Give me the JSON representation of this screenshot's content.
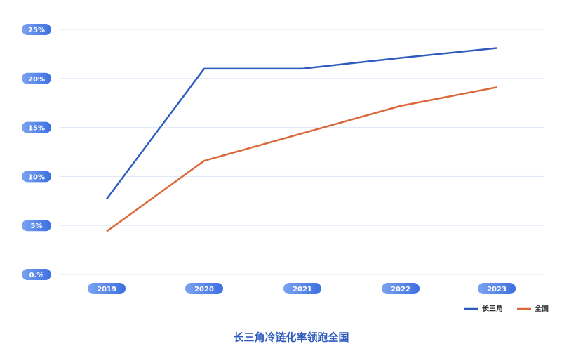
{
  "chart_data": {
    "type": "line",
    "title": "长三角冷链化率领跑全国",
    "categories": [
      "2019",
      "2020",
      "2021",
      "2022",
      "2023"
    ],
    "series": [
      {
        "name": "长三角",
        "color": "#2f5bbf",
        "values": [
          7.7,
          21,
          21,
          22.1,
          23.1
        ]
      },
      {
        "name": "全国",
        "color": "#d9693a",
        "values": [
          4.4,
          11.6,
          14.4,
          17.2,
          19.1
        ]
      }
    ],
    "ylim": [
      0,
      25
    ],
    "yticks": [
      {
        "value": 0,
        "label": "0.%"
      },
      {
        "value": 5,
        "label": "5%"
      },
      {
        "value": 10,
        "label": "10%"
      },
      {
        "value": 15,
        "label": "15%"
      },
      {
        "value": 20,
        "label": "20%"
      },
      {
        "value": 25,
        "label": "25%"
      }
    ],
    "grid": true,
    "legend": "bottom-right"
  }
}
